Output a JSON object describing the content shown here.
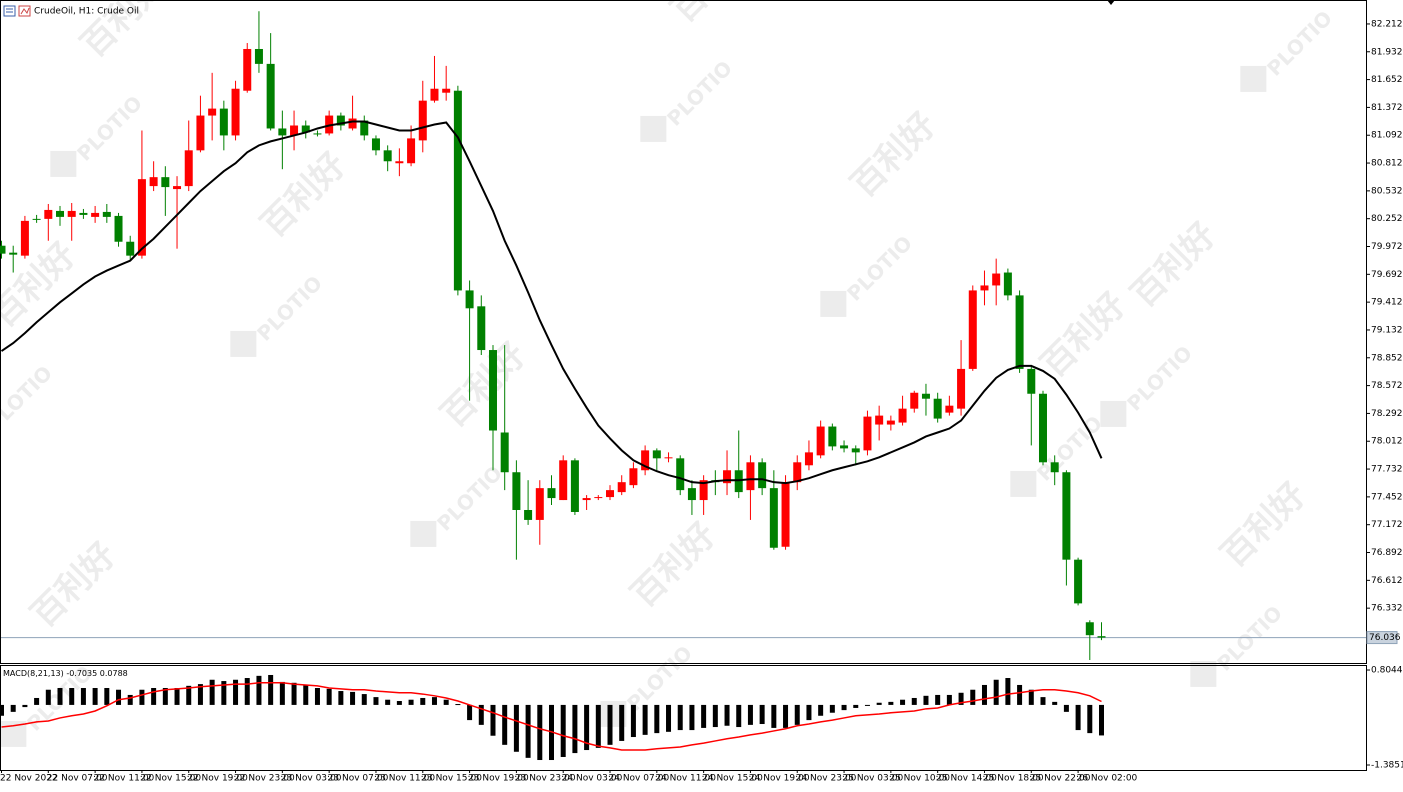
{
  "watermark": {
    "text": "百利好",
    "brand": "PLOTIO"
  },
  "chart_data": [
    {
      "type": "candlestick",
      "title": "CrudeOil, H1:  Crude Oil",
      "categories": [
        "22 Nov 2022",
        null,
        null,
        null,
        "22 Nov 07:00",
        null,
        null,
        null,
        "22 Nov 11:00",
        null,
        null,
        null,
        "22 Nov 15:00",
        null,
        null,
        null,
        "22 Nov 19:00",
        null,
        null,
        null,
        "22 Nov 23:00",
        null,
        null,
        null,
        "23 Nov 03:00",
        null,
        null,
        null,
        "23 Nov 07:00",
        null,
        null,
        null,
        "23 Nov 11:00",
        null,
        null,
        null,
        "23 Nov 15:00",
        null,
        null,
        null,
        "23 Nov 19:00",
        null,
        null,
        null,
        "23 Nov 23:00",
        null,
        null,
        null,
        "24 Nov 03:00",
        null,
        null,
        null,
        "24 Nov 07:00",
        null,
        null,
        null,
        "24 Nov 11:00",
        null,
        null,
        null,
        "24 Nov 15:00",
        null,
        null,
        null,
        "24 Nov 19:00",
        null,
        null,
        null,
        "24 Nov 23:00",
        null,
        null,
        null,
        "25 Nov 03:00",
        null,
        null,
        null,
        "25 Nov 10:00",
        null,
        null,
        null,
        "25 Nov 14:00",
        null,
        null,
        null,
        "25 Nov 18:00",
        null,
        null,
        null,
        "25 Nov 22:00",
        null,
        null,
        null,
        "26 Nov 02:00",
        null,
        null
      ],
      "open": [
        79.98,
        79.91,
        79.88,
        80.25,
        80.25,
        80.33,
        80.27,
        80.31,
        80.27,
        80.32,
        80.28,
        80.02,
        79.88,
        80.58,
        80.67,
        80.55,
        80.58,
        80.94,
        81.29,
        81.36,
        81.09,
        81.54,
        81.96,
        81.81,
        81.16,
        81.09,
        81.19,
        81.11,
        81.11,
        81.29,
        81.16,
        81.24,
        81.06,
        80.94,
        80.81,
        80.81,
        81.04,
        81.44,
        81.52,
        81.54,
        79.53,
        79.37,
        78.93,
        78.1,
        77.7,
        77.32,
        77.22,
        77.54,
        77.42,
        77.82,
        77.42,
        77.45,
        77.45,
        77.5,
        77.57,
        77.72,
        77.92,
        77.84,
        77.84,
        77.54,
        77.42,
        77.62,
        77.59,
        77.72,
        77.52,
        77.8,
        77.54,
        76.95,
        77.6,
        77.77,
        77.87,
        78.16,
        77.97,
        77.94,
        77.92,
        78.18,
        78.18,
        78.2,
        78.34,
        78.49,
        78.44,
        78.3,
        78.34,
        78.74,
        79.53,
        79.58,
        79.71,
        79.48,
        78.74,
        78.49,
        77.8,
        77.7,
        76.82,
        76.19,
        76.05
      ],
      "high": [
        80.03,
        79.98,
        80.28,
        80.29,
        80.4,
        80.38,
        80.41,
        80.35,
        80.38,
        80.4,
        80.31,
        80.08,
        81.14,
        80.83,
        80.78,
        80.68,
        81.24,
        81.49,
        81.72,
        81.44,
        81.64,
        82.02,
        82.34,
        82.12,
        81.34,
        81.34,
        81.24,
        81.14,
        81.34,
        81.32,
        81.49,
        81.29,
        81.09,
        80.99,
        80.96,
        81.19,
        81.64,
        81.89,
        81.79,
        81.59,
        79.63,
        79.48,
        78.98,
        78.98,
        77.82,
        77.62,
        77.62,
        77.67,
        77.87,
        77.84,
        77.47,
        77.47,
        77.57,
        77.67,
        77.8,
        77.97,
        77.94,
        77.9,
        77.87,
        77.62,
        77.67,
        77.72,
        77.92,
        78.12,
        77.87,
        77.84,
        77.72,
        77.67,
        77.87,
        78.02,
        78.22,
        78.19,
        78.02,
        77.97,
        78.32,
        78.37,
        78.27,
        78.47,
        78.52,
        78.59,
        78.5,
        78.47,
        79.03,
        79.58,
        79.73,
        79.85,
        79.75,
        79.53,
        78.78,
        78.52,
        77.87,
        77.72,
        76.84,
        76.21,
        76.19
      ],
      "low": [
        79.85,
        79.71,
        79.85,
        80.21,
        80.03,
        80.18,
        80.03,
        80.25,
        80.21,
        80.21,
        79.97,
        79.83,
        79.85,
        80.53,
        80.28,
        79.95,
        80.53,
        80.92,
        81.04,
        80.94,
        81.04,
        81.52,
        81.72,
        81.14,
        80.75,
        80.94,
        81.06,
        81.08,
        81.09,
        81.14,
        81.14,
        81.04,
        80.89,
        80.73,
        80.68,
        80.78,
        80.92,
        81.42,
        81.44,
        79.48,
        78.42,
        78.88,
        77.72,
        77.52,
        76.82,
        77.17,
        76.97,
        77.37,
        77.42,
        77.27,
        77.32,
        77.42,
        77.42,
        77.47,
        77.54,
        77.67,
        77.72,
        77.8,
        77.47,
        77.27,
        77.27,
        77.47,
        77.47,
        77.44,
        77.22,
        77.47,
        76.92,
        76.92,
        77.52,
        77.72,
        77.84,
        77.92,
        77.9,
        77.77,
        77.87,
        78.02,
        78.12,
        78.17,
        78.3,
        78.27,
        78.2,
        78.27,
        78.27,
        78.72,
        79.38,
        79.38,
        79.43,
        78.7,
        77.97,
        77.77,
        77.57,
        76.56,
        76.36,
        75.81,
        76.01
      ],
      "close": [
        79.9,
        79.89,
        80.23,
        80.24,
        80.34,
        80.27,
        80.33,
        80.29,
        80.31,
        80.27,
        80.02,
        79.88,
        80.65,
        80.67,
        80.57,
        80.58,
        80.94,
        81.29,
        81.36,
        81.09,
        81.56,
        81.96,
        81.81,
        81.16,
        81.09,
        81.19,
        81.12,
        81.1,
        81.29,
        81.19,
        81.26,
        81.09,
        80.94,
        80.83,
        80.83,
        81.06,
        81.44,
        81.56,
        81.56,
        79.53,
        79.35,
        78.93,
        78.12,
        77.7,
        77.32,
        77.22,
        77.54,
        77.44,
        77.82,
        77.3,
        77.44,
        77.45,
        77.52,
        77.6,
        77.74,
        77.92,
        77.84,
        77.85,
        77.52,
        77.42,
        77.62,
        77.6,
        77.72,
        77.5,
        77.8,
        77.54,
        76.94,
        77.6,
        77.8,
        77.9,
        78.16,
        77.96,
        77.94,
        77.9,
        78.26,
        78.27,
        78.22,
        78.34,
        78.5,
        78.44,
        78.24,
        78.37,
        78.74,
        79.53,
        79.58,
        79.7,
        79.48,
        78.74,
        78.49,
        77.8,
        77.7,
        76.82,
        76.38,
        76.06,
        76.036
      ],
      "up_color": "#ff0000",
      "down_color": "#008000",
      "moving_average": {
        "color": "#000000",
        "values": [
          78.92,
          79.0,
          79.1,
          79.21,
          79.31,
          79.41,
          79.5,
          79.59,
          79.67,
          79.73,
          79.78,
          79.83,
          79.95,
          80.05,
          80.17,
          80.29,
          80.41,
          80.53,
          80.63,
          80.73,
          80.81,
          80.92,
          80.99,
          81.03,
          81.06,
          81.09,
          81.12,
          81.16,
          81.19,
          81.21,
          81.23,
          81.23,
          81.2,
          81.17,
          81.14,
          81.14,
          81.17,
          81.2,
          81.22,
          81.07,
          80.83,
          80.58,
          80.33,
          80.03,
          79.78,
          79.51,
          79.23,
          78.98,
          78.74,
          78.54,
          78.35,
          78.17,
          78.04,
          77.92,
          77.82,
          77.76,
          77.71,
          77.67,
          77.64,
          77.6,
          77.59,
          77.61,
          77.62,
          77.62,
          77.63,
          77.63,
          77.6,
          77.59,
          77.61,
          77.64,
          77.68,
          77.72,
          77.75,
          77.78,
          77.81,
          77.85,
          77.9,
          77.95,
          78.0,
          78.06,
          78.1,
          78.14,
          78.22,
          78.37,
          78.52,
          78.65,
          78.73,
          78.77,
          78.77,
          78.72,
          78.64,
          78.48,
          78.3,
          78.1,
          77.84
        ]
      },
      "current_price": 76.036,
      "current_price_color": "#8ea2b8",
      "ylim": [
        75.78,
        82.443
      ],
      "yticks": [
        82.212,
        81.932,
        81.652,
        81.372,
        81.092,
        80.812,
        80.532,
        80.252,
        79.972,
        79.692,
        79.412,
        79.132,
        78.852,
        78.572,
        78.292,
        78.012,
        77.732,
        77.452,
        77.172,
        76.892,
        76.612,
        76.332
      ]
    },
    {
      "type": "macd",
      "title": "MACD(8,21,13)",
      "color": "#000000",
      "values": [
        -0.25,
        -0.16,
        -0.05,
        0.16,
        0.35,
        0.39,
        0.39,
        0.39,
        0.39,
        0.39,
        0.35,
        0.23,
        0.35,
        0.39,
        0.39,
        0.39,
        0.44,
        0.48,
        0.58,
        0.55,
        0.58,
        0.62,
        0.67,
        0.69,
        0.53,
        0.51,
        0.46,
        0.39,
        0.37,
        0.32,
        0.3,
        0.25,
        0.18,
        0.12,
        0.09,
        0.12,
        0.16,
        0.18,
        0.12,
        0.02,
        -0.35,
        -0.46,
        -0.71,
        -0.92,
        -1.08,
        -1.22,
        -1.27,
        -1.27,
        -1.2,
        -1.11,
        -1.04,
        -0.99,
        -0.92,
        -0.83,
        -0.74,
        -0.69,
        -0.65,
        -0.62,
        -0.58,
        -0.58,
        -0.53,
        -0.51,
        -0.48,
        -0.51,
        -0.46,
        -0.44,
        -0.53,
        -0.53,
        -0.46,
        -0.35,
        -0.25,
        -0.18,
        -0.12,
        -0.07,
        -0.01,
        0.05,
        0.07,
        0.12,
        0.16,
        0.21,
        0.23,
        0.23,
        0.28,
        0.35,
        0.46,
        0.58,
        0.62,
        0.46,
        0.35,
        0.18,
        0.07,
        -0.16,
        -0.58,
        -0.65,
        -0.7035
      ],
      "signal": {
        "color": "#ff0000",
        "values": [
          -0.51,
          -0.48,
          -0.44,
          -0.39,
          -0.37,
          -0.3,
          -0.25,
          -0.21,
          -0.14,
          -0.02,
          0.12,
          0.16,
          0.23,
          0.3,
          0.35,
          0.37,
          0.39,
          0.42,
          0.44,
          0.46,
          0.48,
          0.48,
          0.51,
          0.51,
          0.51,
          0.48,
          0.46,
          0.44,
          0.39,
          0.37,
          0.35,
          0.35,
          0.32,
          0.3,
          0.28,
          0.28,
          0.25,
          0.21,
          0.16,
          0.09,
          0.0,
          -0.09,
          -0.18,
          -0.28,
          -0.37,
          -0.46,
          -0.55,
          -0.62,
          -0.71,
          -0.78,
          -0.88,
          -0.95,
          -0.99,
          -1.04,
          -1.04,
          -1.04,
          -1.01,
          -0.99,
          -0.97,
          -0.92,
          -0.88,
          -0.83,
          -0.78,
          -0.74,
          -0.69,
          -0.65,
          -0.6,
          -0.55,
          -0.48,
          -0.44,
          -0.39,
          -0.35,
          -0.3,
          -0.25,
          -0.23,
          -0.21,
          -0.18,
          -0.16,
          -0.14,
          -0.09,
          -0.07,
          0.0,
          0.05,
          0.09,
          0.14,
          0.18,
          0.25,
          0.28,
          0.32,
          0.35,
          0.35,
          0.32,
          0.28,
          0.21,
          0.0788
        ]
      },
      "ylim": [
        -1.5,
        0.897
      ],
      "yticks": [
        0.8044,
        -1.3851
      ]
    }
  ]
}
